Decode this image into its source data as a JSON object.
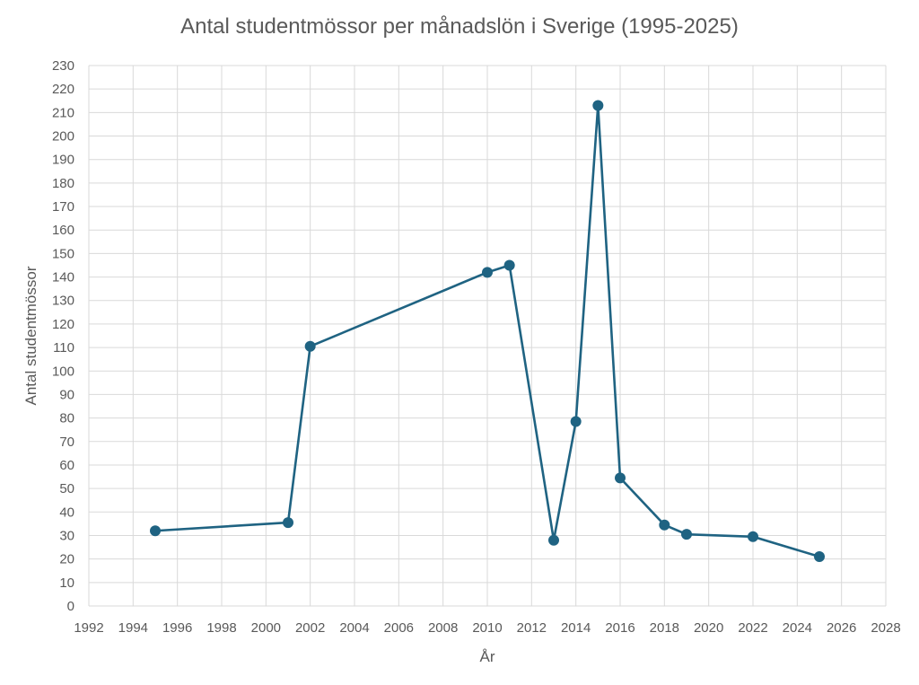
{
  "chart_data": {
    "type": "scatter",
    "title": "Antal studentmössor per månadslön i Sverige (1995-2025)",
    "xlabel": "År",
    "ylabel": "Antal studentmössor",
    "xlim": [
      1992,
      2028
    ],
    "ylim": [
      0,
      230
    ],
    "x_ticks": [
      "1992",
      "1994",
      "1996",
      "1998",
      "2000",
      "2002",
      "2004",
      "2006",
      "2008",
      "2010",
      "2012",
      "2014",
      "2016",
      "2018",
      "2020",
      "2022",
      "2024",
      "2026",
      "2028"
    ],
    "y_ticks": [
      "0",
      "10",
      "20",
      "30",
      "40",
      "50",
      "60",
      "70",
      "80",
      "90",
      "100",
      "110",
      "120",
      "130",
      "140",
      "150",
      "160",
      "170",
      "180",
      "190",
      "200",
      "210",
      "220",
      "230"
    ],
    "grid": true,
    "legend": "none",
    "series": [
      {
        "color": "#1f6382",
        "x": [
          1995,
          2001,
          2002,
          2010,
          2011,
          2013,
          2014,
          2015,
          2016,
          2018,
          2019,
          2022,
          2025
        ],
        "y": [
          32,
          35.5,
          110.5,
          142,
          145,
          28,
          78.5,
          213,
          54.5,
          34.5,
          30.5,
          29.5,
          21
        ]
      }
    ]
  }
}
